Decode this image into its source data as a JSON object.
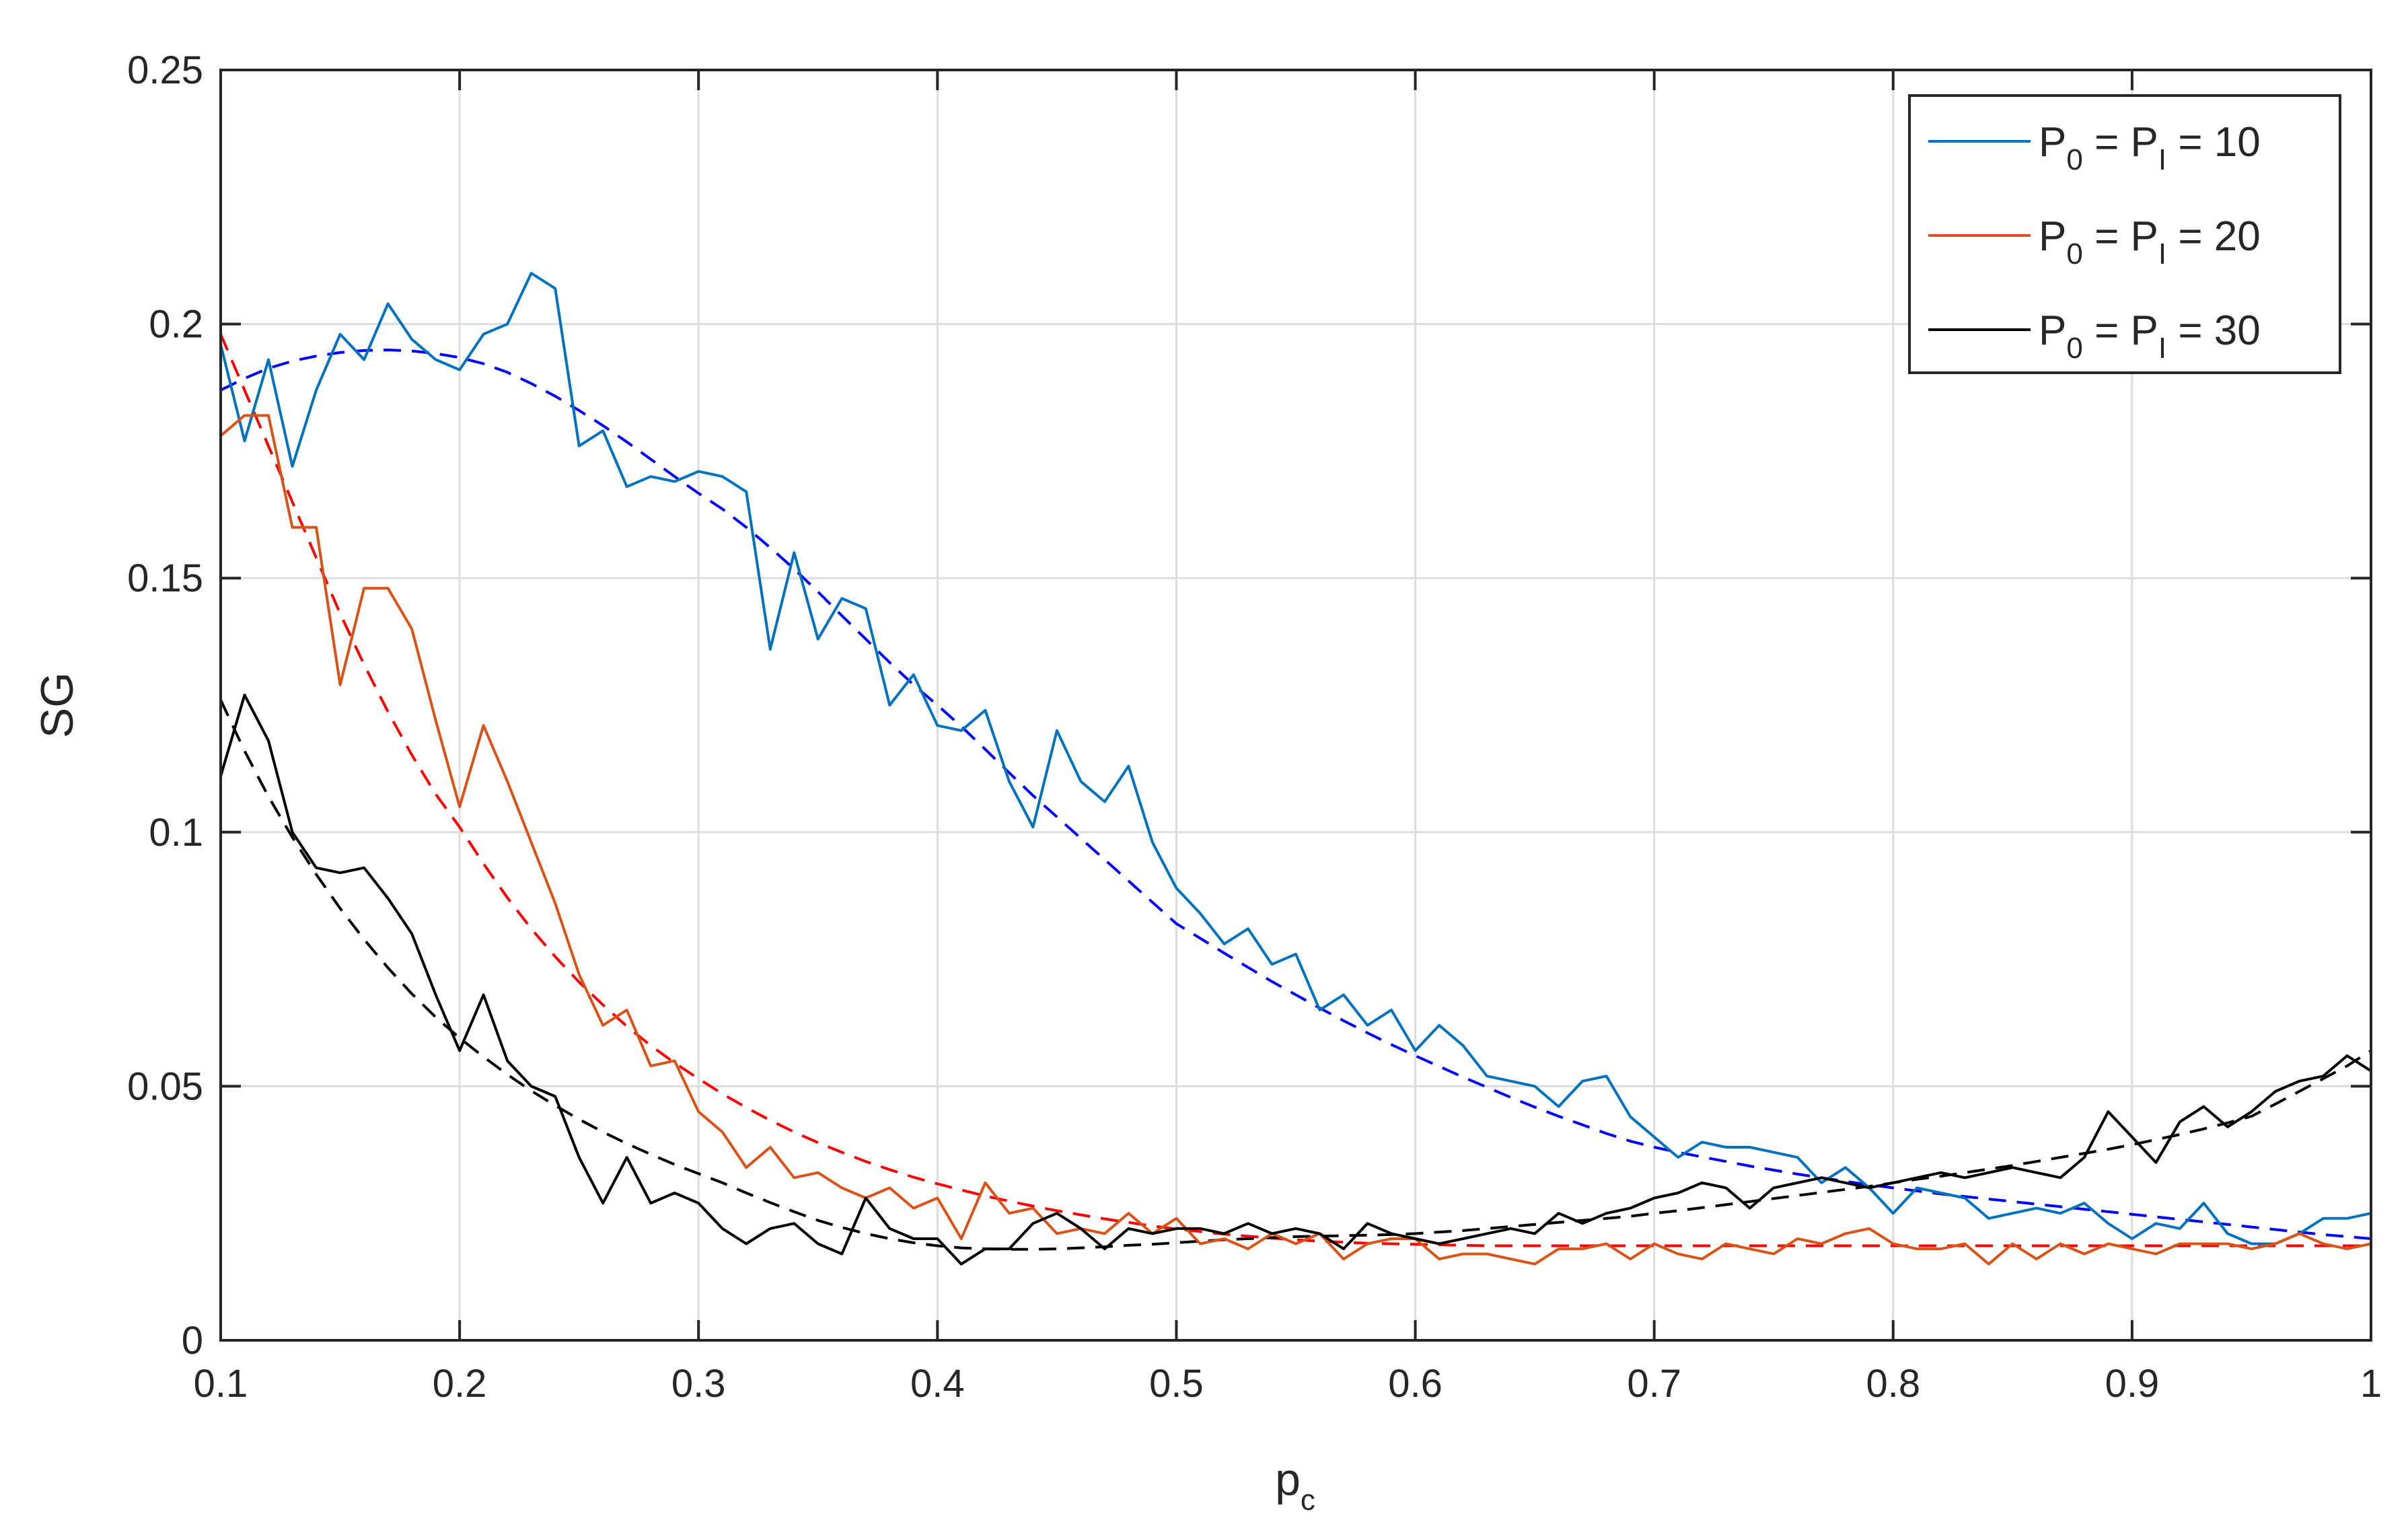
{
  "chart_data": {
    "type": "line",
    "title": "",
    "xlabel": "p",
    "xlabel_subscript": "c",
    "ylabel": "SG",
    "xlim": [
      0.1,
      1
    ],
    "ylim": [
      0,
      0.25
    ],
    "xticks": [
      0.1,
      0.2,
      0.3,
      0.4,
      0.5,
      0.6,
      0.7,
      0.8,
      0.9,
      1
    ],
    "xtick_labels": [
      "0.1",
      "0.2",
      "0.3",
      "0.4",
      "0.5",
      "0.6",
      "0.7",
      "0.8",
      "0.9",
      "1"
    ],
    "yticks": [
      0,
      0.05,
      0.1,
      0.15,
      0.2,
      0.25
    ],
    "ytick_labels": [
      "0",
      "0.05",
      "0.1",
      "0.15",
      "0.2",
      "0.25"
    ],
    "grid": true,
    "legend_position": "top-right",
    "x": [
      0.1,
      0.11,
      0.12,
      0.13,
      0.14,
      0.15,
      0.16,
      0.17,
      0.18,
      0.19,
      0.2,
      0.21,
      0.22,
      0.23,
      0.24,
      0.25,
      0.26,
      0.27,
      0.28,
      0.29,
      0.3,
      0.31,
      0.32,
      0.33,
      0.34,
      0.35,
      0.36,
      0.37,
      0.38,
      0.39,
      0.4,
      0.41,
      0.42,
      0.43,
      0.44,
      0.45,
      0.46,
      0.47,
      0.48,
      0.49,
      0.5,
      0.51,
      0.52,
      0.53,
      0.54,
      0.55,
      0.56,
      0.57,
      0.58,
      0.59,
      0.6,
      0.61,
      0.62,
      0.63,
      0.64,
      0.65,
      0.66,
      0.67,
      0.68,
      0.69,
      0.7,
      0.71,
      0.72,
      0.73,
      0.74,
      0.75,
      0.76,
      0.77,
      0.78,
      0.79,
      0.8,
      0.81,
      0.82,
      0.83,
      0.84,
      0.85,
      0.86,
      0.87,
      0.88,
      0.89,
      0.9,
      0.91,
      0.92,
      0.93,
      0.94,
      0.95,
      0.96,
      0.97,
      0.98,
      0.99,
      1.0
    ],
    "series": [
      {
        "name_parts": [
          "P",
          "0",
          " = P",
          "I",
          " = 10"
        ],
        "color": "#0072BD",
        "style": "solid",
        "values": [
          0.196,
          0.177,
          0.193,
          0.172,
          0.187,
          0.198,
          0.193,
          0.204,
          0.197,
          0.193,
          0.191,
          0.198,
          0.2,
          0.21,
          0.207,
          0.176,
          0.179,
          0.168,
          0.17,
          0.169,
          0.171,
          0.17,
          0.167,
          0.136,
          0.155,
          0.138,
          0.146,
          0.144,
          0.125,
          0.131,
          0.121,
          0.12,
          0.124,
          0.11,
          0.101,
          0.12,
          0.11,
          0.106,
          0.113,
          0.098,
          0.089,
          0.084,
          0.078,
          0.081,
          0.074,
          0.076,
          0.065,
          0.068,
          0.062,
          0.065,
          0.057,
          0.062,
          0.058,
          0.052,
          0.051,
          0.05,
          0.046,
          0.051,
          0.052,
          0.044,
          0.04,
          0.036,
          0.039,
          0.038,
          0.038,
          0.037,
          0.036,
          0.031,
          0.034,
          0.03,
          0.025,
          0.03,
          0.029,
          0.028,
          0.024,
          0.025,
          0.026,
          0.025,
          0.027,
          0.023,
          0.02,
          0.023,
          0.022,
          0.027,
          0.021,
          0.019,
          0.019,
          0.021,
          0.024,
          0.024,
          0.025
        ]
      },
      {
        "name_parts": [
          "P",
          "0",
          " = P",
          "I",
          " = 20"
        ],
        "color": "#D95319",
        "style": "solid",
        "values": [
          0.178,
          0.182,
          0.182,
          0.16,
          0.16,
          0.129,
          0.148,
          0.148,
          0.14,
          0.122,
          0.105,
          0.121,
          0.11,
          0.098,
          0.086,
          0.072,
          0.062,
          0.065,
          0.054,
          0.055,
          0.045,
          0.041,
          0.034,
          0.038,
          0.032,
          0.033,
          0.03,
          0.028,
          0.03,
          0.026,
          0.028,
          0.02,
          0.031,
          0.025,
          0.026,
          0.021,
          0.022,
          0.021,
          0.025,
          0.021,
          0.024,
          0.019,
          0.02,
          0.018,
          0.021,
          0.019,
          0.021,
          0.016,
          0.019,
          0.02,
          0.02,
          0.016,
          0.017,
          0.017,
          0.016,
          0.015,
          0.018,
          0.018,
          0.019,
          0.016,
          0.019,
          0.017,
          0.016,
          0.019,
          0.018,
          0.017,
          0.02,
          0.019,
          0.021,
          0.022,
          0.019,
          0.018,
          0.018,
          0.019,
          0.015,
          0.019,
          0.016,
          0.019,
          0.017,
          0.019,
          0.018,
          0.017,
          0.019,
          0.019,
          0.019,
          0.018,
          0.019,
          0.021,
          0.019,
          0.018,
          0.019
        ]
      },
      {
        "name_parts": [
          "P",
          "0",
          " = P",
          "I",
          " = 30"
        ],
        "color": "#000000",
        "style": "solid",
        "values": [
          0.111,
          0.127,
          0.118,
          0.1,
          0.093,
          0.092,
          0.093,
          0.087,
          0.08,
          0.068,
          0.057,
          0.068,
          0.055,
          0.05,
          0.048,
          0.036,
          0.027,
          0.036,
          0.027,
          0.029,
          0.027,
          0.022,
          0.019,
          0.022,
          0.023,
          0.019,
          0.017,
          0.028,
          0.022,
          0.02,
          0.02,
          0.015,
          0.018,
          0.018,
          0.023,
          0.025,
          0.022,
          0.018,
          0.022,
          0.021,
          0.022,
          0.022,
          0.021,
          0.023,
          0.021,
          0.022,
          0.021,
          0.018,
          0.023,
          0.021,
          0.02,
          0.019,
          0.02,
          0.021,
          0.022,
          0.021,
          0.025,
          0.023,
          0.025,
          0.026,
          0.028,
          0.029,
          0.031,
          0.03,
          0.026,
          0.03,
          0.031,
          0.032,
          0.031,
          0.03,
          0.031,
          0.032,
          0.033,
          0.032,
          0.033,
          0.034,
          0.033,
          0.032,
          0.036,
          0.045,
          0.04,
          0.035,
          0.043,
          0.046,
          0.042,
          0.045,
          0.049,
          0.051,
          0.052,
          0.056,
          0.053
        ]
      },
      {
        "name": "",
        "color": "#0000FF",
        "style": "dashed",
        "values": [
          0.187,
          0.1893,
          0.1913,
          0.1927,
          0.1937,
          0.1944,
          0.1948,
          0.1949,
          0.1947,
          0.1942,
          0.1934,
          0.1922,
          0.1905,
          0.1883,
          0.1858,
          0.183,
          0.18,
          0.1768,
          0.1734,
          0.17,
          0.1667,
          0.1636,
          0.16,
          0.156,
          0.1518,
          0.1473,
          0.1426,
          0.138,
          0.1334,
          0.129,
          0.125,
          0.1208,
          0.1163,
          0.1117,
          0.1072,
          0.103,
          0.0988,
          0.0946,
          0.0904,
          0.0862,
          0.082,
          0.0791,
          0.0762,
          0.0734,
          0.0706,
          0.068,
          0.0654,
          0.0629,
          0.0605,
          0.0582,
          0.056,
          0.0539,
          0.0518,
          0.0498,
          0.0478,
          0.0459,
          0.0441,
          0.0424,
          0.0407,
          0.0392,
          0.038,
          0.037,
          0.0361,
          0.0352,
          0.0343,
          0.0335,
          0.0327,
          0.032,
          0.0313,
          0.0306,
          0.03,
          0.0294,
          0.0288,
          0.0283,
          0.0278,
          0.0273,
          0.0268,
          0.0263,
          0.0258,
          0.0253,
          0.0248,
          0.0243,
          0.0238,
          0.0233,
          0.0228,
          0.0223,
          0.0218,
          0.0213,
          0.0208,
          0.0204,
          0.02
        ]
      },
      {
        "name": "",
        "color": "#FF0000",
        "style": "dashed",
        "values": [
          0.198,
          0.187,
          0.176,
          0.165,
          0.154,
          0.143,
          0.133,
          0.1237,
          0.1152,
          0.1075,
          0.101,
          0.0938,
          0.0871,
          0.081,
          0.0755,
          0.0705,
          0.066,
          0.0618,
          0.058,
          0.0546,
          0.0515,
          0.0485,
          0.0458,
          0.0433,
          0.041,
          0.0389,
          0.037,
          0.0352,
          0.0336,
          0.0321,
          0.0308,
          0.0296,
          0.0284,
          0.0274,
          0.0264,
          0.0255,
          0.0247,
          0.0239,
          0.0232,
          0.0225,
          0.0219,
          0.0214,
          0.0209,
          0.0205,
          0.0201,
          0.0198,
          0.0195,
          0.0193,
          0.0191,
          0.019,
          0.0189,
          0.0188,
          0.0187,
          0.0186,
          0.0186,
          0.0186,
          0.0186,
          0.0186,
          0.0186,
          0.0186,
          0.0186,
          0.0186,
          0.0186,
          0.0186,
          0.0186,
          0.0186,
          0.0186,
          0.0186,
          0.0186,
          0.0186,
          0.0186,
          0.0186,
          0.0186,
          0.0186,
          0.0186,
          0.0186,
          0.0186,
          0.0186,
          0.0186,
          0.0186,
          0.0186,
          0.0186,
          0.0186,
          0.0186,
          0.0186,
          0.0186,
          0.0186,
          0.0186,
          0.0186,
          0.0186,
          0.0186
        ]
      },
      {
        "name": "",
        "color": "#000000",
        "style": "dashed",
        "values": [
          0.126,
          0.116,
          0.107,
          0.099,
          0.0917,
          0.085,
          0.0789,
          0.0733,
          0.0682,
          0.0636,
          0.0595,
          0.0558,
          0.0523,
          0.0491,
          0.0462,
          0.0435,
          0.041,
          0.0387,
          0.0366,
          0.0346,
          0.0328,
          0.031,
          0.029,
          0.0271,
          0.0253,
          0.0236,
          0.0222,
          0.021,
          0.02,
          0.0192,
          0.0186,
          0.0182,
          0.018,
          0.0179,
          0.0179,
          0.018,
          0.0182,
          0.0184,
          0.0187,
          0.0189,
          0.0192,
          0.0195,
          0.0198,
          0.02,
          0.0202,
          0.0204,
          0.0205,
          0.0206,
          0.0207,
          0.0208,
          0.021,
          0.0213,
          0.0216,
          0.022,
          0.0224,
          0.0228,
          0.0232,
          0.0236,
          0.024,
          0.0244,
          0.025,
          0.0255,
          0.0261,
          0.0267,
          0.0273,
          0.0279,
          0.0285,
          0.0291,
          0.0297,
          0.0303,
          0.031,
          0.0317,
          0.0323,
          0.033,
          0.0337,
          0.0344,
          0.0352,
          0.036,
          0.0368,
          0.0376,
          0.0385,
          0.0395,
          0.0405,
          0.0416,
          0.0428,
          0.0441,
          0.0465,
          0.049,
          0.0515,
          0.054,
          0.057
        ]
      }
    ]
  }
}
